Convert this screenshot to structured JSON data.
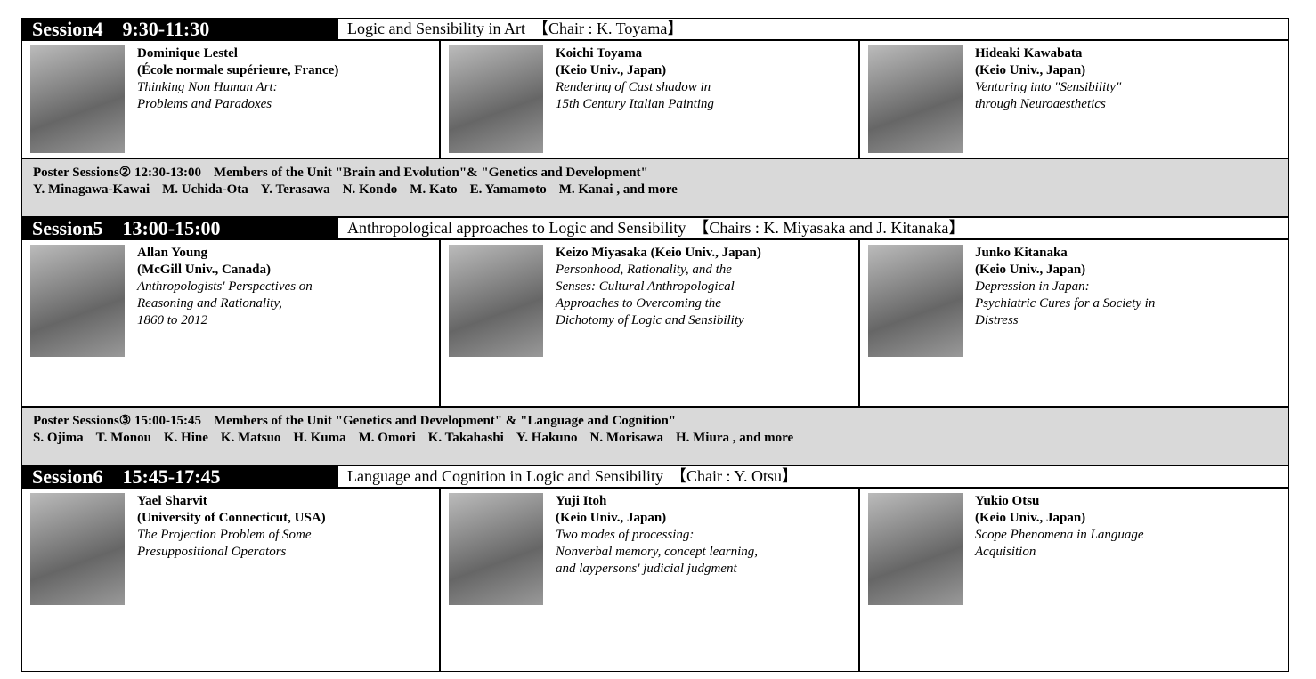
{
  "sessions": [
    {
      "label": "Session4",
      "time": "9:30-11:30",
      "title": "Logic and Sensibility in Art",
      "chair": "【Chair : K. Toyama】",
      "speakers": [
        {
          "bold": [
            "Dominique Lestel",
            "(École normale supérieure, France)"
          ],
          "italic": [
            "Thinking Non Human Art:",
            "Problems and Paradoxes"
          ]
        },
        {
          "bold": [
            "Koichi Toyama",
            "(Keio Univ., Japan)"
          ],
          "italic": [
            "Rendering of Cast shadow in",
            "15th Century Italian Painting"
          ]
        },
        {
          "bold": [
            "Hideaki Kawabata",
            "(Keio Univ., Japan)"
          ],
          "italic": [
            "Venturing into \"Sensibility\"",
            "through Neuroaesthetics"
          ]
        }
      ]
    },
    {
      "label": "Session5",
      "time": "13:00-15:00",
      "title": "Anthropological approaches to Logic and Sensibility",
      "chair": "【Chairs : K. Miyasaka and J. Kitanaka】",
      "speakers": [
        {
          "bold": [
            "Allan Young",
            "(McGill Univ., Canada)"
          ],
          "italic": [
            "Anthropologists' Perspectives on",
            "Reasoning and Rationality,",
            "1860 to 2012"
          ]
        },
        {
          "bold": [
            "Keizo Miyasaka (Keio Univ., Japan)"
          ],
          "italic": [
            "Personhood, Rationality, and the",
            "Senses: Cultural Anthropological",
            "Approaches to Overcoming the",
            "Dichotomy of Logic and Sensibility"
          ]
        },
        {
          "bold": [
            "Junko Kitanaka",
            "(Keio Univ., Japan)"
          ],
          "italic": [
            "Depression in Japan:",
            "Psychiatric Cures for a Society in",
            "Distress"
          ]
        }
      ]
    },
    {
      "label": "Session6",
      "time": "15:45-17:45",
      "title": "Language and Cognition in Logic and Sensibility",
      "chair": "【Chair : Y. Otsu】",
      "speakers": [
        {
          "bold": [
            "Yael Sharvit",
            "(University of Connecticut, USA)"
          ],
          "italic": [
            "The Projection Problem of Some",
            "Presuppositional Operators"
          ]
        },
        {
          "bold": [
            "Yuji Itoh",
            "(Keio Univ., Japan)"
          ],
          "italic": [
            "Two modes of processing:",
            "Nonverbal memory, concept learning,",
            "and laypersons' judicial judgment"
          ]
        },
        {
          "bold": [
            "Yukio Otsu",
            "(Keio Univ., Japan)"
          ],
          "italic": [
            "Scope Phenomena in Language",
            "Acquisition"
          ]
        }
      ]
    }
  ],
  "posters": [
    {
      "title": "Poster Sessions② 12:30-13:00",
      "members": "Members of the Unit \"Brain and Evolution\"& \"Genetics and Development\"",
      "names": [
        "Y. Minagawa-Kawai",
        "M. Uchida-Ota",
        "Y. Terasawa",
        "N. Kondo",
        "M. Kato",
        "E. Yamamoto",
        "M. Kanai , and more"
      ]
    },
    {
      "title": "Poster Sessions③ 15:00-15:45",
      "members": "Members of the Unit \"Genetics and Development\" & \"Language and Cognition\"",
      "names": [
        "S. Ojima",
        "T. Monou",
        "K. Hine",
        "K. Matsuo",
        "H. Kuma",
        "M. Omori",
        "K. Takahashi",
        "Y. Hakuno",
        "N. Morisawa",
        "H. Miura , and more"
      ]
    }
  ]
}
